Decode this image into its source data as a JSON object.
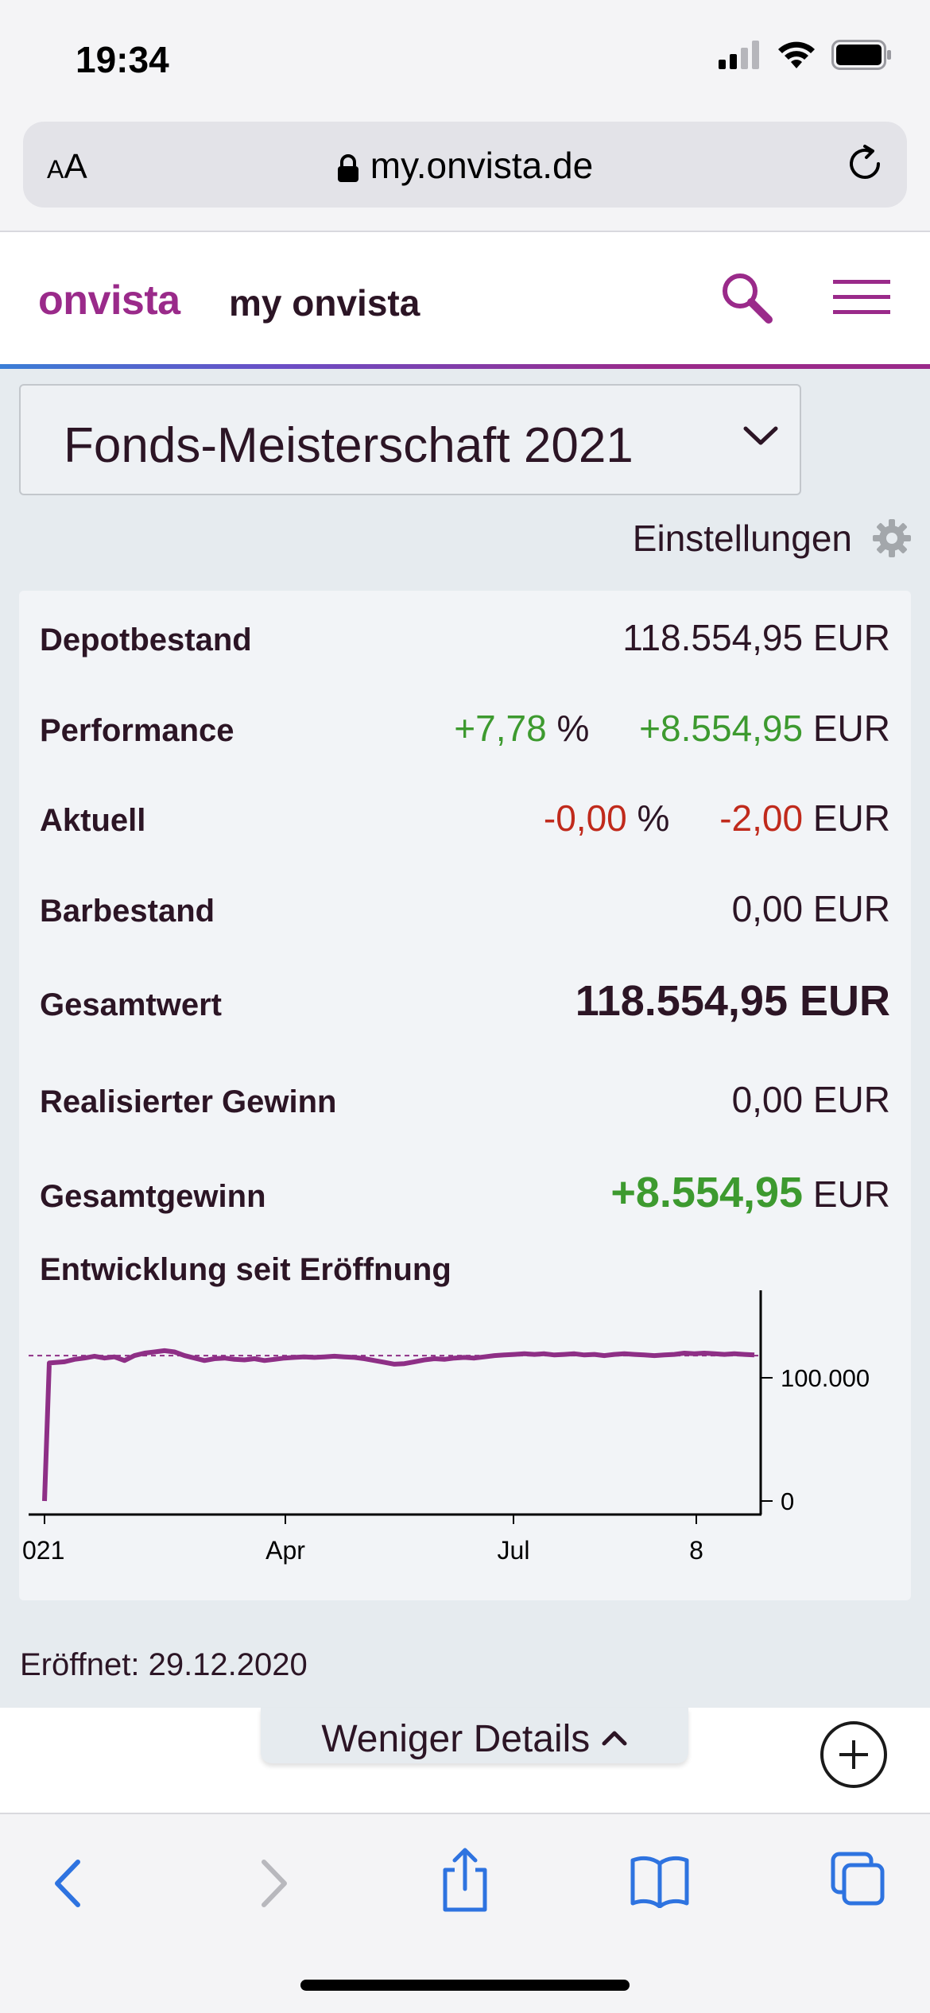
{
  "status": {
    "time": "19:34"
  },
  "browser": {
    "aa_label_small": "A",
    "aa_label_big": "A",
    "url": "my.onvista.de"
  },
  "header": {
    "logo": "onvista",
    "section": "my onvista"
  },
  "portfolio": {
    "selected": "Fonds-Meisterschaft 2021"
  },
  "settings": {
    "label": "Einstellungen"
  },
  "summary": {
    "depotbestand": {
      "label": "Depotbestand",
      "value": "118.554,95 EUR"
    },
    "performance": {
      "label": "Performance",
      "pct": "+7,78",
      "pct_unit": "%",
      "abs": "+8.554,95",
      "abs_unit": "EUR"
    },
    "aktuell": {
      "label": "Aktuell",
      "pct": "-0,00",
      "pct_unit": "%",
      "abs": "-2,00",
      "abs_unit": "EUR"
    },
    "barbestand": {
      "label": "Barbestand",
      "value": "0,00 EUR"
    },
    "gesamtwert": {
      "label": "Gesamtwert",
      "value": "118.554,95 EUR"
    },
    "realisiert": {
      "label": "Realisierter Gewinn",
      "value": "0,00 EUR"
    },
    "gesamtgewinn": {
      "label": "Gesamtgewinn",
      "value": "+8.554,95",
      "unit": "EUR"
    }
  },
  "chart_data": {
    "type": "line",
    "title": "Entwicklung seit Eröffnung",
    "x_ticks": [
      "021",
      "Apr",
      "Jul",
      "8"
    ],
    "y_ticks": [
      "100.000",
      "0"
    ],
    "ylim": [
      0,
      160000
    ],
    "reference_line": 118000,
    "series": [
      {
        "color": "#8e2f86",
        "values": [
          0,
          112000,
          113000,
          115000,
          116000,
          117500,
          116000,
          117000,
          114000,
          118000,
          120000,
          121000,
          122000,
          121000,
          118000,
          116000,
          114000,
          115500,
          116000,
          115000,
          114500,
          115500,
          114000,
          115000,
          116000,
          116500,
          117000,
          116500,
          117000,
          117500,
          117000,
          116500,
          115500,
          114000,
          112500,
          111000,
          111500,
          113000,
          114500,
          115500,
          115000,
          116000,
          116500,
          116000,
          117000,
          118000,
          118500,
          119000,
          119500,
          119000,
          119500,
          118500,
          119000,
          119500,
          118500,
          119000,
          118000,
          119000,
          119500,
          119000,
          118500,
          118000,
          118500,
          119000,
          120000,
          119500,
          120000,
          119500,
          119000,
          119500,
          119000,
          118500
        ]
      }
    ],
    "color_axis": "#000000"
  },
  "footer": {
    "opened": "Eröffnet: 29.12.2020",
    "less_details": "Weniger Details"
  }
}
